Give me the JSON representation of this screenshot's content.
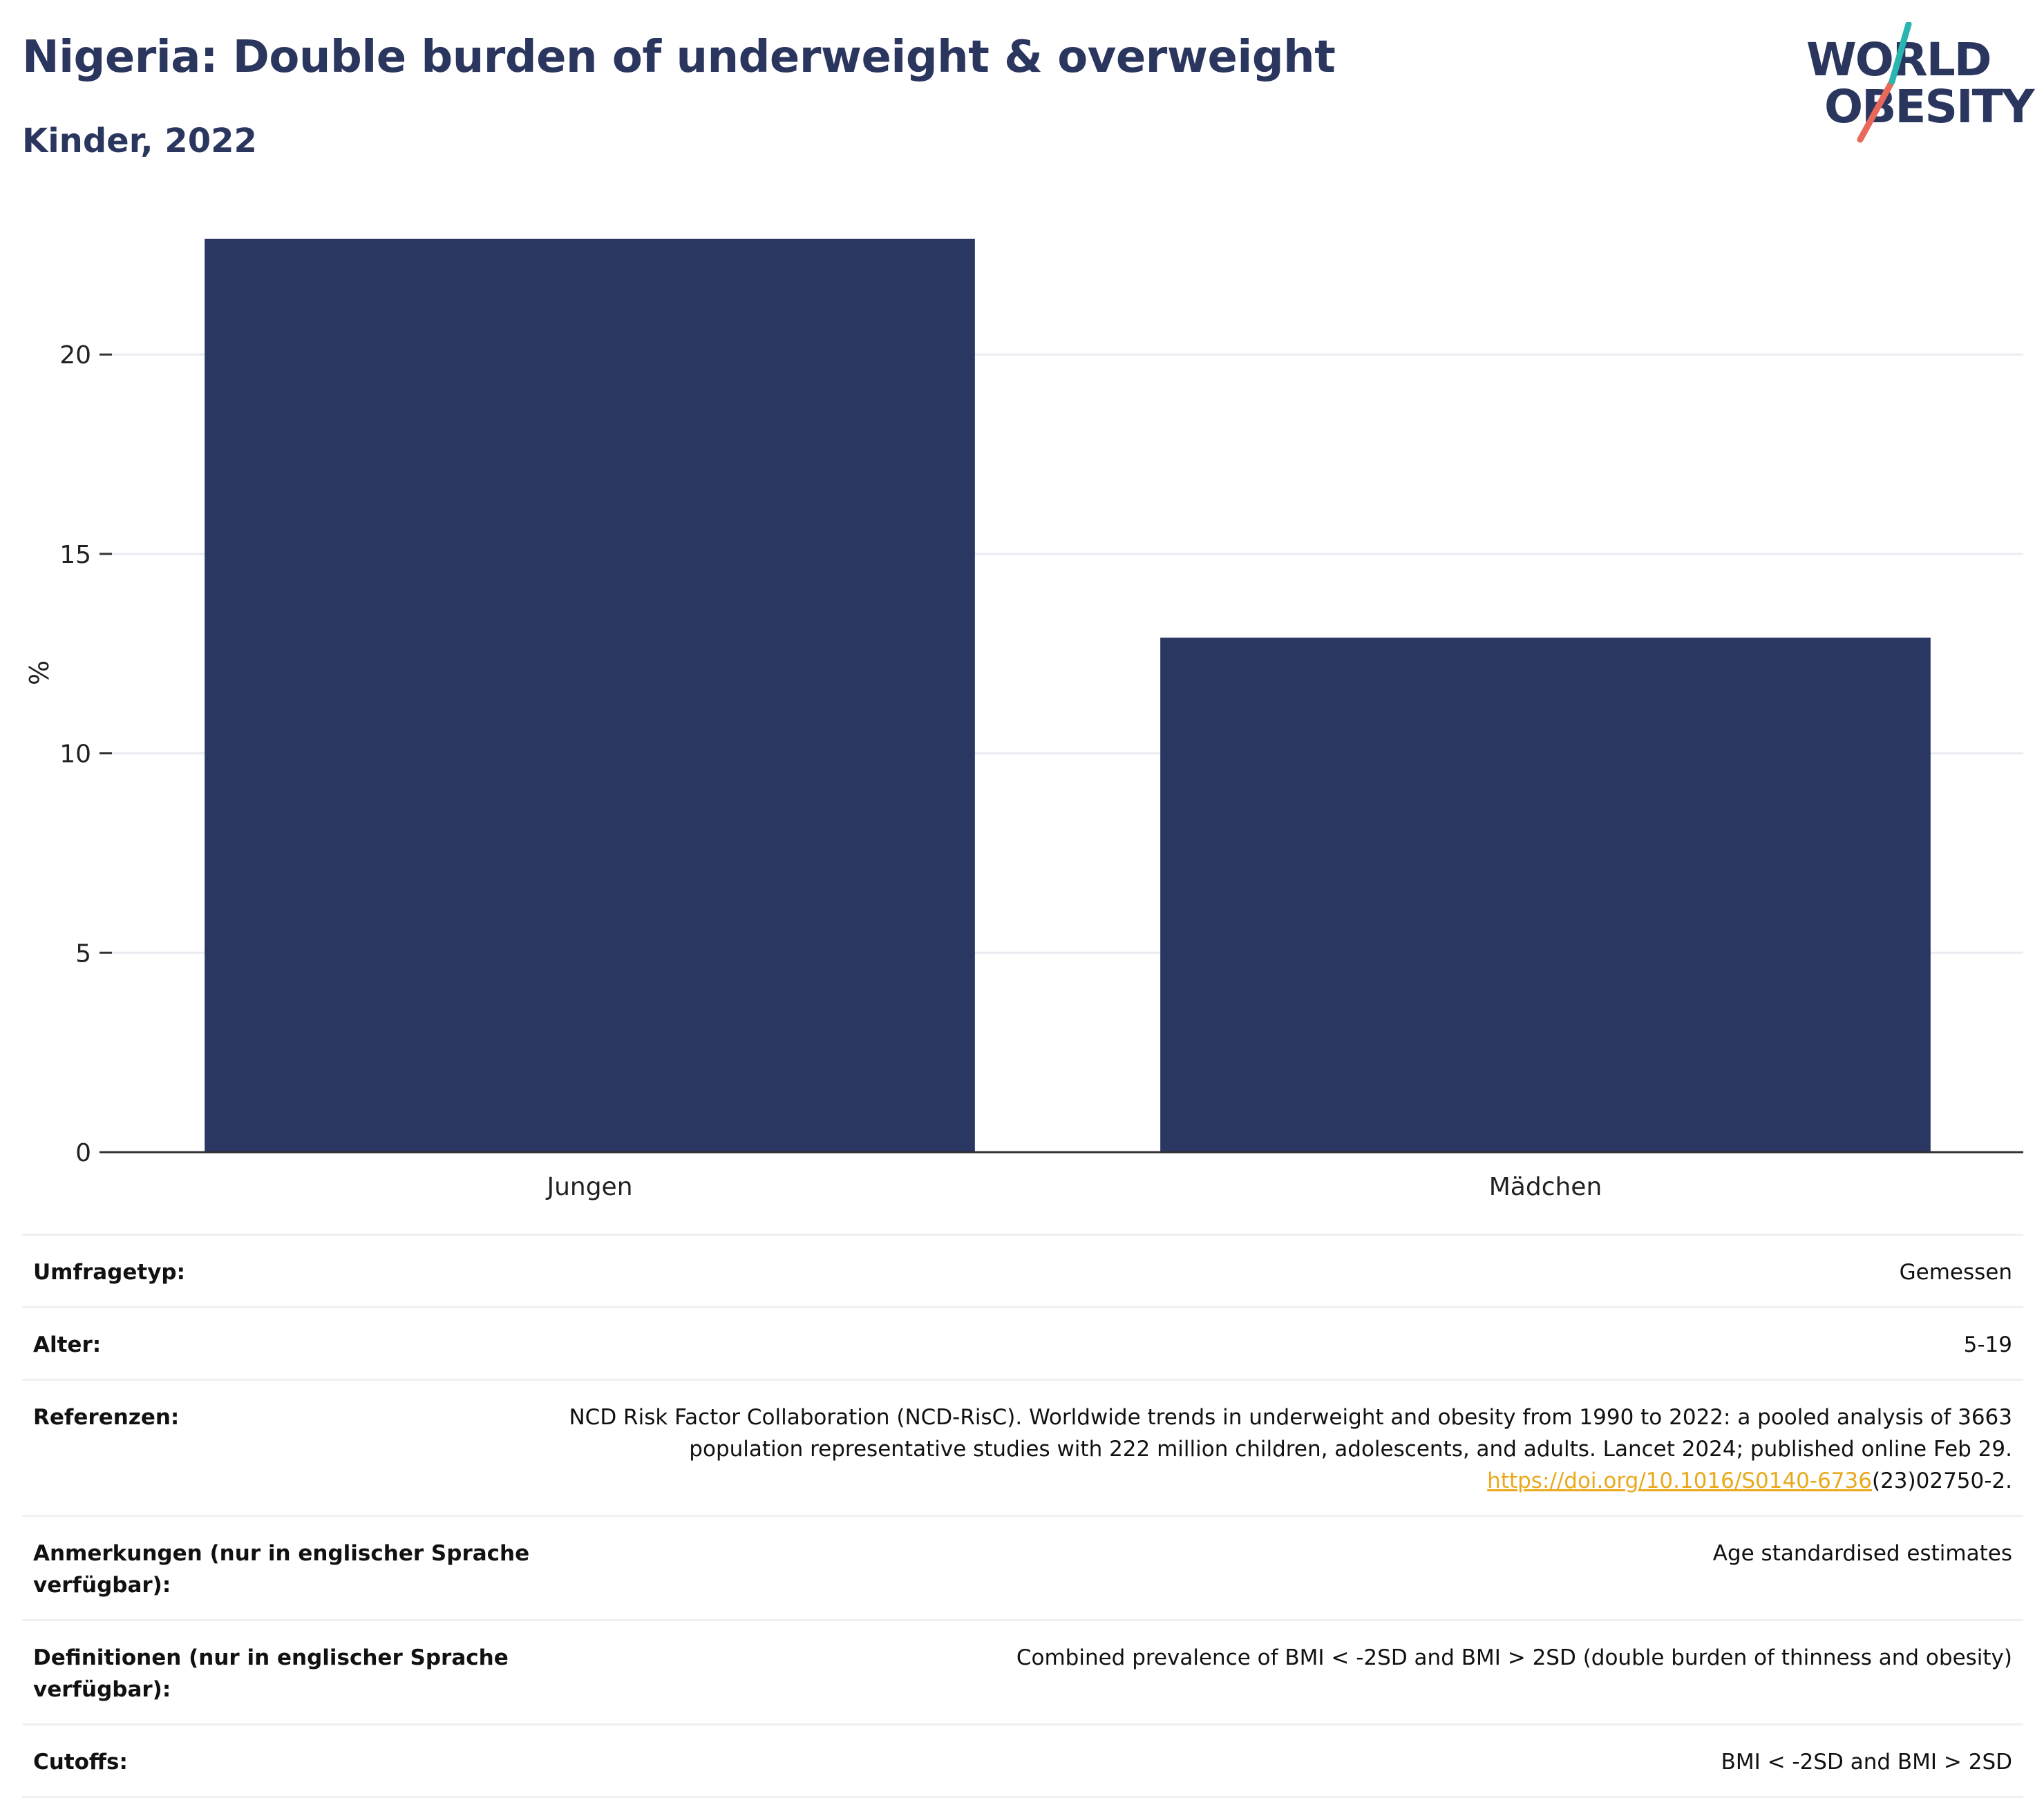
{
  "header": {
    "title": "Nigeria: Double burden of underweight & overweight",
    "subtitle": "Kinder, 2022"
  },
  "logo": {
    "line1": "WORLD",
    "line2": "OBESITY",
    "accent_teal": "#2bb5b0",
    "accent_coral": "#e8685a"
  },
  "chart_data": {
    "type": "bar",
    "categories": [
      "Jungen",
      "Mädchen"
    ],
    "values": [
      22.9,
      12.9
    ],
    "ylabel": "%",
    "ylim": [
      0,
      23
    ],
    "yticks": [
      0,
      5,
      10,
      15,
      20
    ],
    "grid": true,
    "bar_color": "#2b3763"
  },
  "meta": [
    {
      "key": "Umfragetyp:",
      "value": "Gemessen"
    },
    {
      "key": "Alter:",
      "value": "5-19"
    },
    {
      "key": "Referenzen:",
      "value": "NCD Risk Factor Collaboration (NCD-RisC). Worldwide trends in underweight and obesity from 1990 to 2022: a pooled analysis of 3663 population representative studies with 222 million children, adolescents, and adults. Lancet 2024; published online Feb 29.",
      "link": "https://doi.org/10.1016/S0140-6736",
      "suffix": "(23)02750-2."
    },
    {
      "key": "Anmerkungen (nur in englischer Sprache verfügbar):",
      "value": "Age standardised estimates"
    },
    {
      "key": "Definitionen (nur in englischer Sprache verfügbar):",
      "value": "Combined prevalence of BMI < -2SD and BMI > 2SD (double burden of thinness and obesity)"
    },
    {
      "key": "Cutoffs:",
      "value": "BMI < -2SD and BMI > 2SD"
    }
  ]
}
